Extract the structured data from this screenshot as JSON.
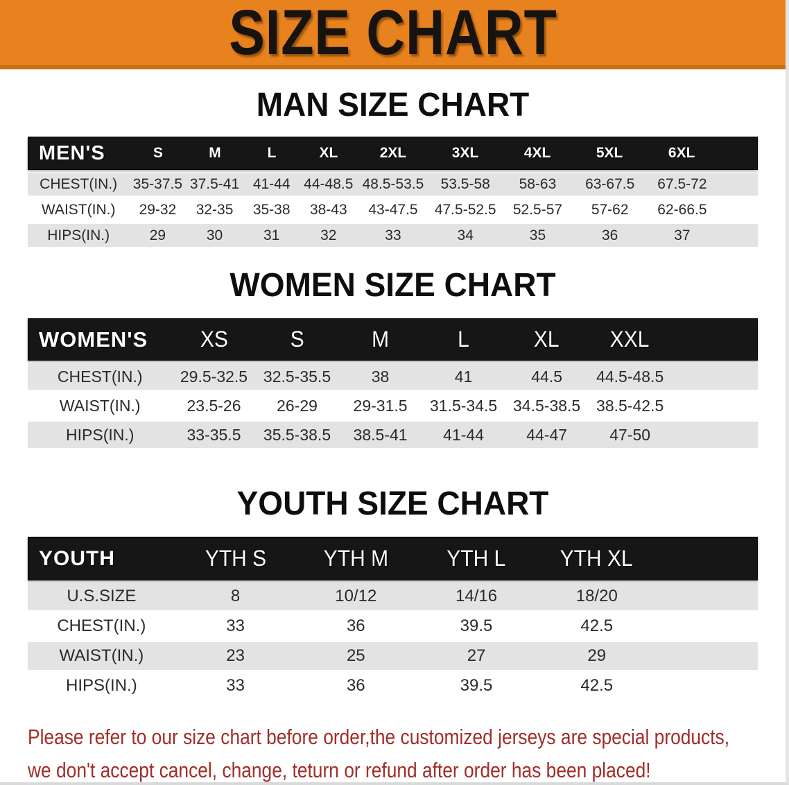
{
  "banner": {
    "title": "SIZE CHART"
  },
  "colors": {
    "banner_bg": "#e8821e",
    "banner_edge": "#c96f12",
    "table_header_bg": "#161616",
    "row_alt_bg": "#e3e3e3",
    "disclaimer_text": "#a22d28"
  },
  "men": {
    "heading": "MAN SIZE CHART",
    "corner_label": "MEN'S",
    "sizes": [
      "S",
      "M",
      "L",
      "XL",
      "2XL",
      "3XL",
      "4XL",
      "5XL",
      "6XL"
    ],
    "rows": [
      {
        "label": "CHEST(IN.)",
        "values": [
          "35-37.5",
          "37.5-41",
          "41-44",
          "44-48.5",
          "48.5-53.5",
          "53.5-58",
          "58-63",
          "63-67.5",
          "67.5-72"
        ]
      },
      {
        "label": "WAIST(IN.)",
        "values": [
          "29-32",
          "32-35",
          "35-38",
          "38-43",
          "43-47.5",
          "47.5-52.5",
          "52.5-57",
          "57-62",
          "62-66.5"
        ]
      },
      {
        "label": "HIPS(IN.)",
        "values": [
          "29",
          "30",
          "31",
          "32",
          "33",
          "34",
          "35",
          "36",
          "37"
        ]
      }
    ]
  },
  "women": {
    "heading": "WOMEN SIZE CHART",
    "corner_label": "WOMEN'S",
    "sizes": [
      "XS",
      "S",
      "M",
      "L",
      "XL",
      "XXL"
    ],
    "rows": [
      {
        "label": "CHEST(IN.)",
        "values": [
          "29.5-32.5",
          "32.5-35.5",
          "38",
          "41",
          "44.5",
          "44.5-48.5"
        ]
      },
      {
        "label": "WAIST(IN.)",
        "values": [
          "23.5-26",
          "26-29",
          "29-31.5",
          "31.5-34.5",
          "34.5-38.5",
          "38.5-42.5"
        ]
      },
      {
        "label": "HIPS(IN.)",
        "values": [
          "33-35.5",
          "35.5-38.5",
          "38.5-41",
          "41-44",
          "44-47",
          "47-50"
        ]
      }
    ]
  },
  "youth": {
    "heading": "YOUTH SIZE CHART",
    "corner_label": "YOUTH",
    "sizes": [
      "YTH S",
      "YTH M",
      "YTH L",
      "YTH XL"
    ],
    "rows": [
      {
        "label": "U.S.SIZE",
        "values": [
          "8",
          "10/12",
          "14/16",
          "18/20"
        ]
      },
      {
        "label": "CHEST(IN.)",
        "values": [
          "33",
          "36",
          "39.5",
          "42.5"
        ]
      },
      {
        "label": "WAIST(IN.)",
        "values": [
          "23",
          "25",
          "27",
          "29"
        ]
      },
      {
        "label": "HIPS(IN.)",
        "values": [
          "33",
          "36",
          "39.5",
          "42.5"
        ]
      }
    ]
  },
  "disclaimer": {
    "line1": "Please refer to our size chart before order,the customized jerseys are special products,",
    "line2": "we don't accept cancel, change, teturn or refund after order has been placed!"
  }
}
